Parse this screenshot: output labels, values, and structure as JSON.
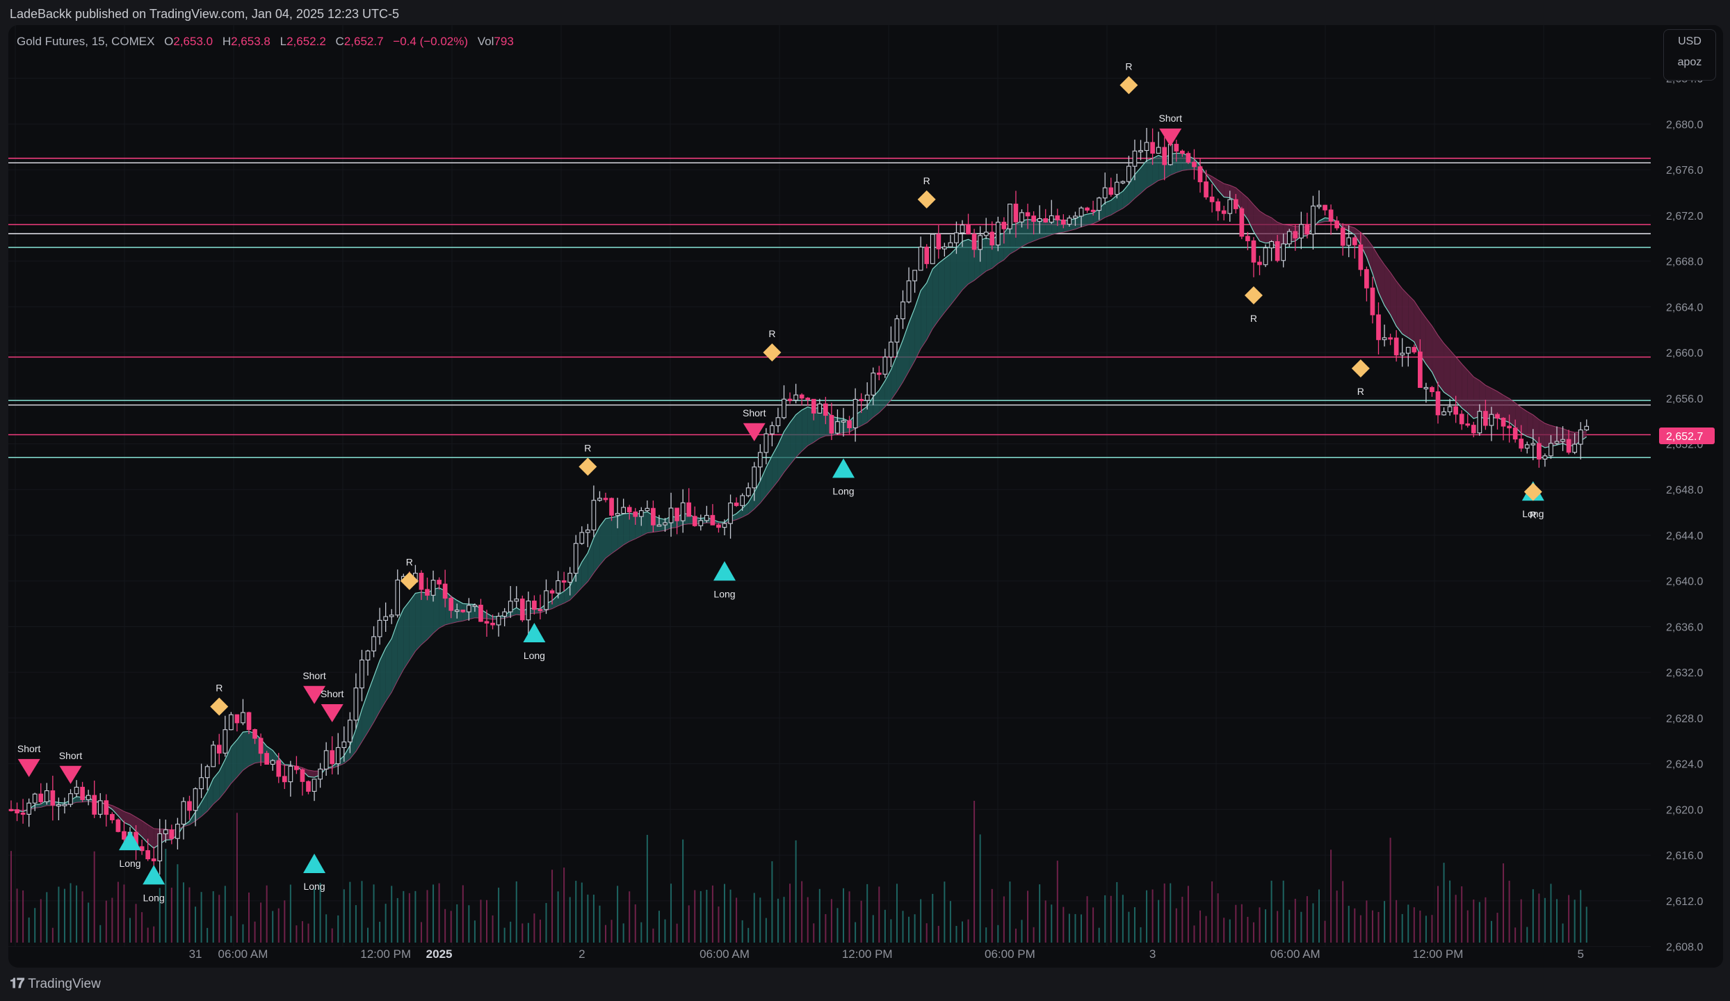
{
  "header": {
    "published_line": "LadeBackk published on TradingView.com, Jan 04, 2025 12:23 UTC-5"
  },
  "legend": {
    "symbol": "Gold Futures, 15, COMEX",
    "open_label": "O",
    "open": "2,653.0",
    "high_label": "H",
    "high": "2,653.8",
    "low_label": "L",
    "low": "2,652.2",
    "close_label": "C",
    "close": "2,652.7",
    "change": "−0.4 (−0.02%)",
    "vol_label": "Vol",
    "vol": "793"
  },
  "price_scale": {
    "currency": "USD",
    "indicator": "apoz",
    "ticks": [
      "2,684.0",
      "2,680.0",
      "2,676.0",
      "2,672.0",
      "2,668.0",
      "2,664.0",
      "2,660.0",
      "2,656.0",
      "2,652.0",
      "2,648.0",
      "2,644.0",
      "2,640.0",
      "2,636.0",
      "2,632.0",
      "2,628.0",
      "2,624.0",
      "2,620.0",
      "2,616.0",
      "2,612.0",
      "2,608.0"
    ],
    "last_price": "2,652.7"
  },
  "time_scale": {
    "labels": [
      {
        "t": 31,
        "text": "31"
      },
      {
        "t": 39,
        "text": "06:00 AM"
      },
      {
        "t": 63,
        "text": "12:00 PM"
      },
      {
        "t": 72,
        "text": "2025",
        "bold": true
      },
      {
        "t": 96,
        "text": "2"
      },
      {
        "t": 120,
        "text": "06:00 AM"
      },
      {
        "t": 144,
        "text": "12:00 PM"
      },
      {
        "t": 168,
        "text": "06:00 PM"
      },
      {
        "t": 192,
        "text": "3"
      },
      {
        "t": 216,
        "text": "06:00 AM"
      },
      {
        "t": 240,
        "text": "12:00 PM"
      },
      {
        "t": 264,
        "text": "5"
      }
    ]
  },
  "horizontal_levels": [
    {
      "price": 2677.0,
      "color": "#f23d7e"
    },
    {
      "price": 2676.6,
      "color": "#d8d8e0"
    },
    {
      "price": 2671.2,
      "color": "#f23d7e"
    },
    {
      "price": 2670.4,
      "color": "#d8d8e0"
    },
    {
      "price": 2669.2,
      "color": "#7fd6c9"
    },
    {
      "price": 2659.6,
      "color": "#f23d7e"
    },
    {
      "price": 2655.8,
      "color": "#7fd6c9"
    },
    {
      "price": 2655.4,
      "color": "#d8d8e0"
    },
    {
      "price": 2652.8,
      "color": "#f23d7e"
    },
    {
      "price": 2650.8,
      "color": "#7fd6c9"
    }
  ],
  "signals": [
    {
      "type": "short",
      "t": 3,
      "price": 2623.8,
      "label": "Short"
    },
    {
      "type": "short",
      "t": 10,
      "price": 2623.2,
      "label": "Short"
    },
    {
      "type": "long",
      "t": 20,
      "price": 2617.4,
      "label": "Long"
    },
    {
      "type": "long",
      "t": 24,
      "price": 2614.4,
      "label": "Long"
    },
    {
      "type": "r",
      "t": 35,
      "price": 2629.0,
      "label": "R"
    },
    {
      "type": "short",
      "t": 51,
      "price": 2630.2,
      "label": "Short"
    },
    {
      "type": "short",
      "t": 54,
      "price": 2628.6,
      "label": "Short"
    },
    {
      "type": "long",
      "t": 51,
      "price": 2615.4,
      "label": "Long"
    },
    {
      "type": "r",
      "t": 67,
      "price": 2640.0,
      "label": "R"
    },
    {
      "type": "long",
      "t": 88,
      "price": 2635.6,
      "label": "Long"
    },
    {
      "type": "r",
      "t": 97,
      "price": 2650.0,
      "label": "R"
    },
    {
      "type": "long",
      "t": 120,
      "price": 2641.0,
      "label": "Long"
    },
    {
      "type": "short",
      "t": 125,
      "price": 2653.2,
      "label": "Short"
    },
    {
      "type": "r",
      "t": 128,
      "price": 2660.0,
      "label": "R"
    },
    {
      "type": "long",
      "t": 140,
      "price": 2650.0,
      "label": "Long"
    },
    {
      "type": "r",
      "t": 154,
      "price": 2673.4,
      "label": "R"
    },
    {
      "type": "r",
      "t": 188,
      "price": 2683.4,
      "label": "R"
    },
    {
      "type": "short",
      "t": 195,
      "price": 2679.0,
      "label": "Short"
    },
    {
      "type": "r",
      "t": 209,
      "price": 2665.0,
      "label": "R"
    },
    {
      "type": "r",
      "t": 227,
      "price": 2658.6,
      "label": "R"
    },
    {
      "type": "long",
      "t": 256,
      "price": 2648.0,
      "label": "Long"
    },
    {
      "type": "r",
      "t": 256,
      "price": 2647.8,
      "label": "R"
    }
  ],
  "colors": {
    "bull": "#c8ccd6",
    "bear": "#f23d7e",
    "accent_teal": "#2dd4d4",
    "accent_orange": "#f7c26b",
    "band_bull": "#1f5f5c",
    "band_bear": "#6a2347"
  },
  "footer": {
    "brand": "TradingView"
  }
}
